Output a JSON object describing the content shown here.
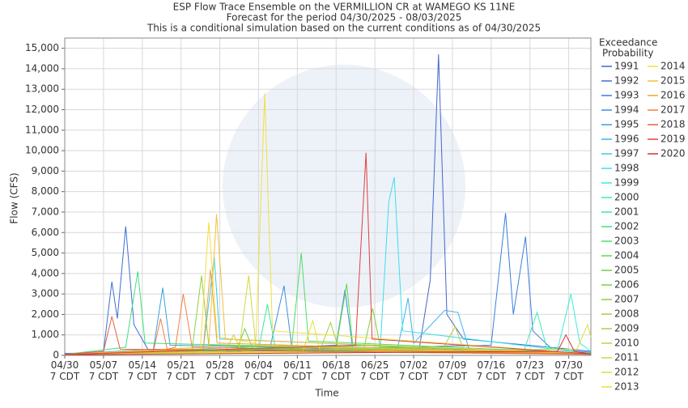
{
  "chart_data": {
    "type": "line",
    "title": "ESP Flow Trace Ensemble on the VERMILLION CR at WAMEGO KS 11NE",
    "subtitle": "Forecast for the period 04/30/2025 - 08/03/2025",
    "note": "This is a conditional simulation based on the current conditions as of 04/30/2025",
    "x_label": "Time",
    "y_label": "Flow (CFS)",
    "legend_title": [
      "Exceedance",
      "Probability"
    ],
    "grid": true,
    "xlim": [
      0,
      95
    ],
    "ylim": [
      0,
      15500
    ],
    "xticks": [
      {
        "value": 0,
        "label": "04/30 7 CDT"
      },
      {
        "value": 7,
        "label": "05/07 7 CDT"
      },
      {
        "value": 14,
        "label": "05/14 7 CDT"
      },
      {
        "value": 21,
        "label": "05/21 7 CDT"
      },
      {
        "value": 28,
        "label": "05/28 7 CDT"
      },
      {
        "value": 35,
        "label": "06/04 7 CDT"
      },
      {
        "value": 42,
        "label": "06/11 7 CDT"
      },
      {
        "value": 49,
        "label": "06/18 7 CDT"
      },
      {
        "value": 56,
        "label": "06/25 7 CDT"
      },
      {
        "value": 63,
        "label": "07/02 7 CDT"
      },
      {
        "value": 70,
        "label": "07/09 7 CDT"
      },
      {
        "value": 77,
        "label": "07/16 7 CDT"
      },
      {
        "value": 84,
        "label": "07/23 7 CDT"
      },
      {
        "value": 91,
        "label": "07/30 7 CDT"
      }
    ],
    "yticks": [
      0,
      {
        "value": 1000,
        "label": "1,000"
      },
      {
        "value": 2000,
        "label": "2,000"
      },
      {
        "value": 3000,
        "label": "3,000"
      },
      {
        "value": 4000,
        "label": "4,000"
      },
      {
        "value": 5000,
        "label": "5,000"
      },
      {
        "value": 6000,
        "label": "6,000"
      },
      {
        "value": 7000,
        "label": "7,000"
      },
      {
        "value": 8000,
        "label": "8,000"
      },
      {
        "value": 9000,
        "label": "9,000"
      },
      {
        "value": 10000,
        "label": "10,000"
      },
      {
        "value": 11000,
        "label": "11,000"
      },
      {
        "value": 12000,
        "label": "12,000"
      },
      {
        "value": 13000,
        "label": "13,000"
      },
      {
        "value": 14000,
        "label": "14,000"
      },
      {
        "value": 15000,
        "label": "15,000"
      }
    ],
    "series": [
      {
        "name": "1991",
        "color": "#4466cc",
        "x": [
          0,
          64,
          66,
          67.5,
          69,
          72,
          95
        ],
        "values": [
          100,
          300,
          3700,
          14700,
          2000,
          800,
          200
        ]
      },
      {
        "name": "1992",
        "color": "#3a6fd6",
        "x": [
          0,
          7,
          8.5,
          9.5,
          11,
          12.5,
          15,
          95
        ],
        "values": [
          50,
          200,
          3600,
          1800,
          6300,
          1500,
          300,
          100
        ]
      },
      {
        "name": "1993",
        "color": "#3a7ee0",
        "x": [
          0,
          77,
          79.6,
          81,
          83.2,
          84.5,
          88,
          95
        ],
        "values": [
          50,
          500,
          6950,
          2000,
          5800,
          1200,
          300,
          150
        ]
      },
      {
        "name": "1994",
        "color": "#3a8ee0",
        "x": [
          0,
          37,
          39.6,
          41,
          49,
          50.6,
          52,
          95
        ],
        "values": [
          50,
          300,
          3400,
          400,
          500,
          3200,
          300,
          100
        ]
      },
      {
        "name": "1995",
        "color": "#3aa0e0",
        "x": [
          0,
          16,
          17.7,
          19,
          95
        ],
        "values": [
          60,
          300,
          3300,
          500,
          80
        ]
      },
      {
        "name": "1996",
        "color": "#3ab4e6",
        "x": [
          0,
          60,
          62,
          63,
          68.6,
          71,
          73,
          95
        ],
        "values": [
          40,
          200,
          2800,
          600,
          2200,
          2100,
          300,
          100
        ]
      },
      {
        "name": "1997",
        "color": "#3ac8ea",
        "x": [
          0,
          25,
          27,
          28,
          95
        ],
        "values": [
          30,
          300,
          4800,
          800,
          60
        ]
      },
      {
        "name": "1998",
        "color": "#3ae0ea",
        "x": [
          0,
          57,
          58.5,
          59.5,
          61,
          95
        ],
        "values": [
          30,
          500,
          7500,
          8700,
          1200,
          80
        ]
      },
      {
        "name": "1999",
        "color": "#3aecd8",
        "x": [
          0,
          89,
          91.4,
          93,
          95
        ],
        "values": [
          30,
          300,
          3000,
          600,
          200
        ]
      },
      {
        "name": "2000",
        "color": "#3aeabc",
        "x": [
          0,
          83,
          85.3,
          87,
          95
        ],
        "values": [
          40,
          300,
          2100,
          400,
          100
        ]
      },
      {
        "name": "2001",
        "color": "#3ae6a0",
        "x": [
          0,
          35,
          36.6,
          38,
          95
        ],
        "values": [
          40,
          300,
          2500,
          400,
          80
        ]
      },
      {
        "name": "2002",
        "color": "#40e080",
        "x": [
          0,
          11,
          13.2,
          14.5,
          95
        ],
        "values": [
          50,
          400,
          4100,
          600,
          90
        ]
      },
      {
        "name": "2003",
        "color": "#50dc60",
        "x": [
          0,
          41,
          42.7,
          44,
          95
        ],
        "values": [
          40,
          500,
          5000,
          700,
          100
        ]
      },
      {
        "name": "2004",
        "color": "#60d848",
        "x": [
          0,
          49,
          50.9,
          52,
          95
        ],
        "values": [
          40,
          400,
          3500,
          500,
          80
        ]
      },
      {
        "name": "2005",
        "color": "#70d040",
        "x": [
          0,
          31,
          32.5,
          34,
          95
        ],
        "values": [
          30,
          200,
          1300,
          300,
          60
        ]
      },
      {
        "name": "2006",
        "color": "#80d040",
        "x": [
          0,
          54,
          55.6,
          57,
          95
        ],
        "values": [
          30,
          300,
          2300,
          400,
          70
        ]
      },
      {
        "name": "2007",
        "color": "#90d040",
        "x": [
          0,
          23,
          24.7,
          26,
          95
        ],
        "values": [
          30,
          300,
          3900,
          500,
          60
        ]
      },
      {
        "name": "2008",
        "color": "#a0d040",
        "x": [
          0,
          46,
          48,
          49.5,
          95
        ],
        "values": [
          30,
          200,
          1600,
          300,
          50
        ]
      },
      {
        "name": "2009",
        "color": "#b0d040",
        "x": [
          0,
          68,
          70.5,
          72,
          95
        ],
        "values": [
          30,
          200,
          1400,
          300,
          60
        ]
      },
      {
        "name": "2010",
        "color": "#c0d440",
        "x": [
          0,
          29,
          30.5,
          32,
          95
        ],
        "values": [
          30,
          200,
          1000,
          200,
          50
        ]
      },
      {
        "name": "2011",
        "color": "#d0d840",
        "x": [
          0,
          31.5,
          33.2,
          34.5,
          95
        ],
        "values": [
          30,
          300,
          3900,
          500,
          60
        ]
      },
      {
        "name": "2012",
        "color": "#dcdc40",
        "x": [
          0,
          92.5,
          94.4,
          95
        ],
        "values": [
          30,
          300,
          1500,
          900
        ]
      },
      {
        "name": "2013",
        "color": "#e6e040",
        "x": [
          0,
          43,
          44.8,
          46,
          95
        ],
        "values": [
          30,
          200,
          1700,
          300,
          50
        ]
      },
      {
        "name": "2014",
        "color": "#f0e040",
        "x": [
          0,
          24.5,
          26,
          27.5,
          34.5,
          36.1,
          37.5,
          95
        ],
        "values": [
          40,
          400,
          6500,
          900,
          600,
          12800,
          1200,
          80
        ]
      },
      {
        "name": "2015",
        "color": "#f0c040",
        "x": [
          0,
          26,
          27.4,
          29,
          95
        ],
        "values": [
          40,
          400,
          6900,
          800,
          70
        ]
      },
      {
        "name": "2016",
        "color": "#f0a040",
        "x": [
          0,
          25,
          26.3,
          27.5,
          95
        ],
        "values": [
          40,
          300,
          4200,
          600,
          60
        ]
      },
      {
        "name": "2017",
        "color": "#f08040",
        "x": [
          0,
          16,
          17.3,
          18.5,
          20,
          21.4,
          23,
          95
        ],
        "values": [
          40,
          200,
          1800,
          300,
          400,
          3000,
          400,
          60
        ]
      },
      {
        "name": "2018",
        "color": "#e86040",
        "x": [
          0,
          7,
          8.5,
          10,
          95
        ],
        "values": [
          40,
          200,
          1900,
          300,
          50
        ]
      },
      {
        "name": "2019",
        "color": "#e04040",
        "x": [
          0,
          52.5,
          54.4,
          55.5,
          95
        ],
        "values": [
          40,
          500,
          9900,
          800,
          70
        ]
      },
      {
        "name": "2020",
        "color": "#d83030",
        "x": [
          0,
          89,
          90.5,
          92,
          95
        ],
        "values": [
          30,
          200,
          1000,
          200,
          60
        ]
      }
    ]
  }
}
